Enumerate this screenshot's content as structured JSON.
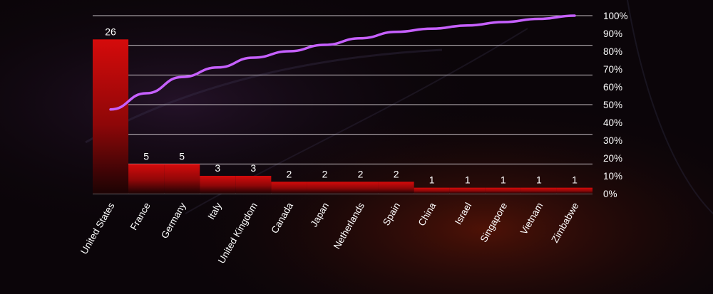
{
  "chart_data": {
    "type": "bar",
    "title": "",
    "xlabel": "",
    "ylabel": "",
    "categories": [
      "United States",
      "France",
      "Germany",
      "Italy",
      "United Kingdom",
      "Canada",
      "Japan",
      "Netherlands",
      "Spain",
      "China",
      "Israel",
      "Singapore",
      "Vietnam",
      "Zimbabwe"
    ],
    "values": [
      26,
      5,
      5,
      3,
      3,
      2,
      2,
      2,
      2,
      1,
      1,
      1,
      1,
      1
    ],
    "ylim": [
      0,
      30
    ],
    "cumulative_percent": {
      "type": "line",
      "values": [
        47.3,
        56.4,
        65.5,
        70.9,
        76.4,
        80.0,
        83.6,
        87.3,
        90.9,
        92.7,
        94.5,
        96.4,
        98.2,
        100.0
      ],
      "ylim": [
        0,
        100
      ],
      "ticks": [
        "0%",
        "10%",
        "20%",
        "30%",
        "40%",
        "50%",
        "60%",
        "70%",
        "80%",
        "90%",
        "100%"
      ],
      "axis_side": "right"
    },
    "grid": true,
    "legend": "none",
    "colors": {
      "bar_top": "#d50b0b",
      "bar_bottom": "#1c0304",
      "line": "#c660ff",
      "grid": "#d8d2d6",
      "text": "#ffffff"
    }
  }
}
